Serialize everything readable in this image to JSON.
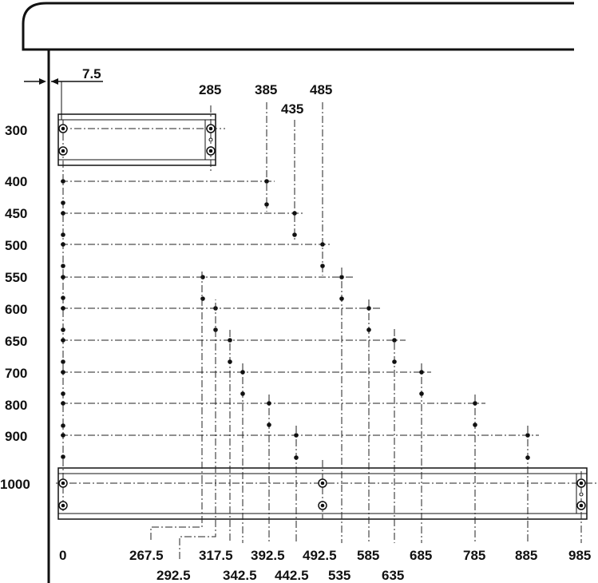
{
  "offset_label": "7.5",
  "top_panel": {
    "left_label": "",
    "right_label": "285"
  },
  "bottom_panel": {
    "mid_label": "492.5",
    "right_label": "985"
  },
  "row_labels": [
    "300",
    "400",
    "450",
    "500",
    "550",
    "600",
    "650",
    "700",
    "800",
    "900",
    "1000"
  ],
  "column_labels_top": [
    "285",
    "385",
    "435",
    "485"
  ],
  "column_labels_bottom_upper": [
    "0",
    "267.5",
    "317.5",
    "392.5",
    "492.5",
    "585",
    "685",
    "785",
    "885",
    "985"
  ],
  "column_labels_bottom_lower": [
    "292.5",
    "342.5",
    "442.5",
    "535",
    "635"
  ],
  "colors": {
    "ink": "#111111",
    "background": "#ffffff"
  }
}
